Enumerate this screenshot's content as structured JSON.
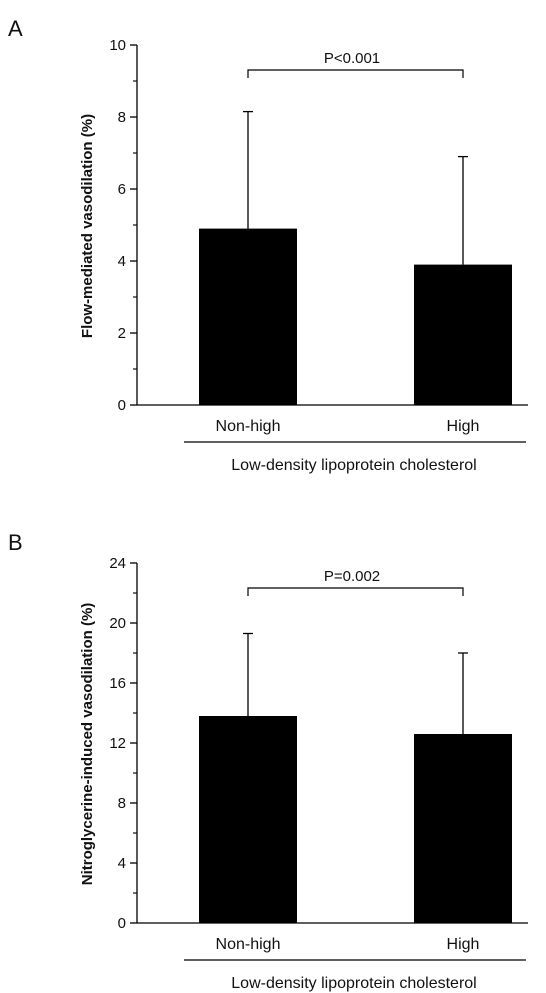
{
  "chart_data": [
    {
      "type": "bar",
      "panel": "A",
      "categories": [
        "Non-high",
        "High"
      ],
      "values": [
        4.9,
        3.9
      ],
      "error_upper": [
        8.15,
        6.9
      ],
      "ylabel": "Flow-mediated vasodilation (%)",
      "xlabel": "Low-density lipoprotein cholesterol",
      "ylim": [
        0,
        10
      ],
      "yticks": [
        "0",
        "2",
        "4",
        "6",
        "8",
        "10"
      ],
      "annotation": "P<0.001",
      "bar_color": "#000000",
      "grid": false,
      "legend": "none"
    },
    {
      "type": "bar",
      "panel": "B",
      "categories": [
        "Non-high",
        "High"
      ],
      "values": [
        13.8,
        12.6
      ],
      "error_upper": [
        19.3,
        18.0
      ],
      "ylabel": "Nitroglycerine-induced vasodilation (%)",
      "xlabel": "Low-density lipoprotein cholesterol",
      "ylim": [
        0,
        24
      ],
      "yticks": [
        "0",
        "4",
        "8",
        "12",
        "16",
        "20",
        "24"
      ],
      "annotation": "P=0.002",
      "bar_color": "#000000",
      "grid": false,
      "legend": "none"
    }
  ]
}
